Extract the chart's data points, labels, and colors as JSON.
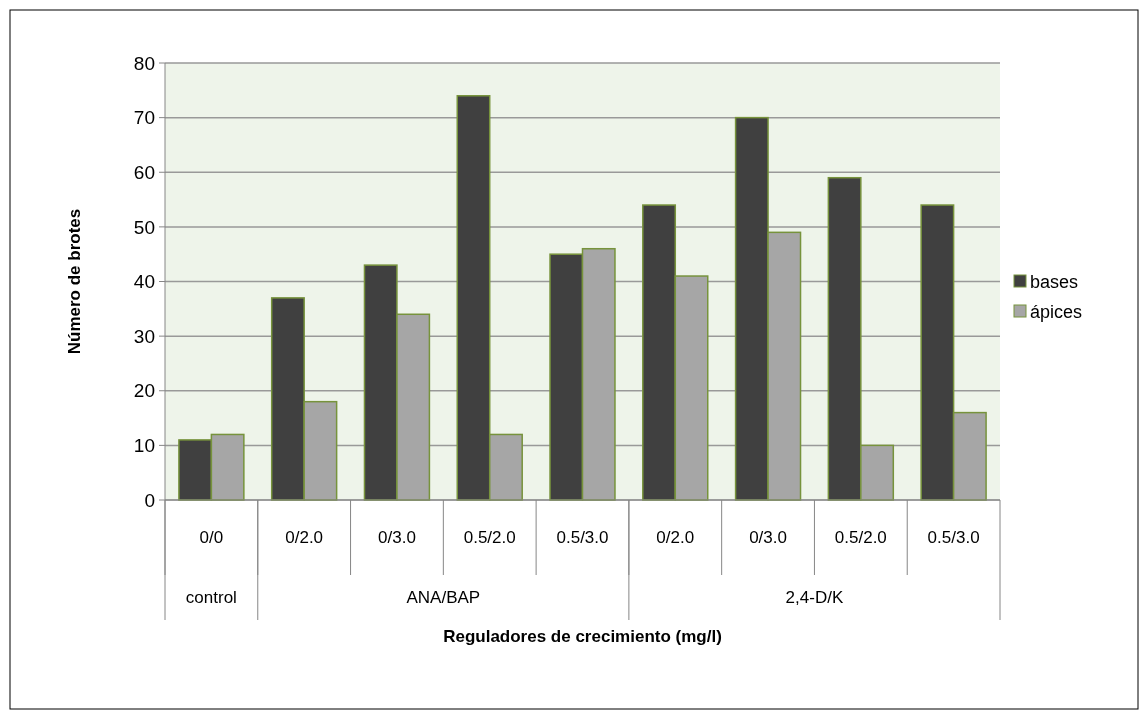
{
  "chart_data": {
    "type": "bar",
    "xlabel": "Reguladores de crecimiento (mg/l)",
    "ylabel": "Número de brotes",
    "categories": [
      "0/0",
      "0/2.0",
      "0/3.0",
      "0.5/2.0",
      "0.5/3.0",
      "0/2.0",
      "0/3.0",
      "0.5/2.0",
      "0.5/3.0"
    ],
    "series": [
      {
        "name": "bases",
        "color": "#404040",
        "values": [
          11,
          37,
          43,
          74,
          45,
          54,
          70,
          59,
          54
        ]
      },
      {
        "name": "ápices",
        "color": "#a6a6a6",
        "values": [
          12,
          18,
          34,
          12,
          46,
          41,
          49,
          10,
          16
        ]
      }
    ],
    "annotations": [
      "control",
      "ANA/BAP",
      "2,4-D/K"
    ],
    "ylim": [
      0,
      80
    ],
    "yticks": [
      0,
      10,
      20,
      30,
      40,
      50,
      60,
      70,
      80
    ],
    "grid": "y",
    "legend": "right"
  }
}
